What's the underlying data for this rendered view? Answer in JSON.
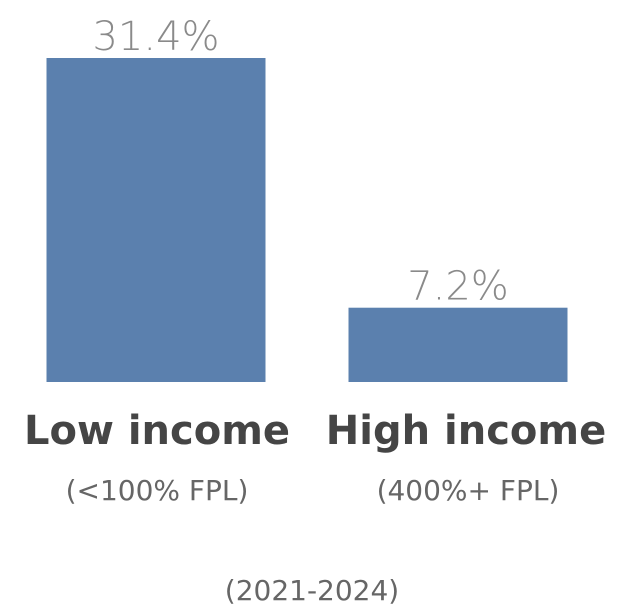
{
  "chart_data": {
    "type": "bar",
    "categories": [
      "Low income",
      "High income"
    ],
    "subcategories": [
      "(<100% FPL)",
      "(400%+ FPL)"
    ],
    "values": [
      31.4,
      7.2
    ],
    "value_labels": [
      "31.4%",
      "7.2%"
    ],
    "color": "#5b80ae",
    "footnote": "(2021-2024)"
  }
}
